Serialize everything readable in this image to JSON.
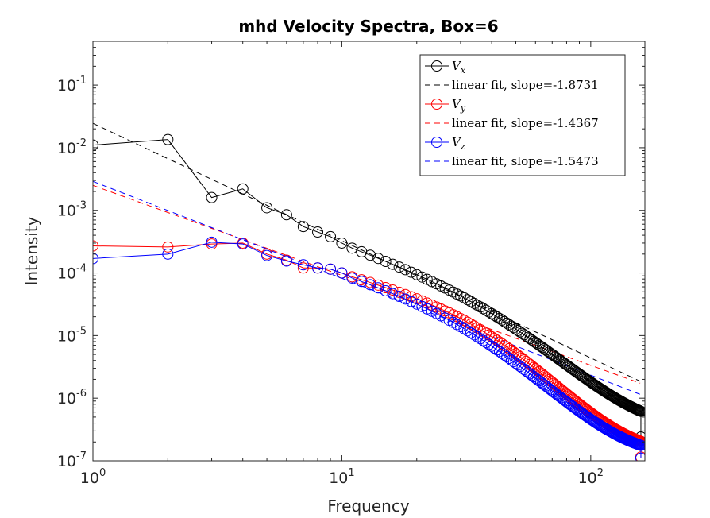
{
  "chart_data": {
    "type": "scatter",
    "title": "mhd Velocity Spectra, Box=6",
    "xlabel": "Frequency",
    "ylabel": "Intensity",
    "xscale": "log",
    "yscale": "log",
    "xlim": [
      1,
      165
    ],
    "ylim": [
      1e-07,
      0.5
    ],
    "xticks": [
      {
        "value": 1,
        "base": "10",
        "exp": "0"
      },
      {
        "value": 10,
        "base": "10",
        "exp": "1"
      },
      {
        "value": 100,
        "base": "10",
        "exp": "2"
      }
    ],
    "yticks": [
      {
        "value": 1e-07,
        "base": "10",
        "exp": "-7"
      },
      {
        "value": 1e-06,
        "base": "10",
        "exp": "-6"
      },
      {
        "value": 1e-05,
        "base": "10",
        "exp": "-5"
      },
      {
        "value": 0.0001,
        "base": "10",
        "exp": "-4"
      },
      {
        "value": 0.001,
        "base": "10",
        "exp": "-3"
      },
      {
        "value": 0.01,
        "base": "10",
        "exp": "-2"
      },
      {
        "value": 0.1,
        "base": "10",
        "exp": "-1"
      }
    ],
    "legend_position": "top-right",
    "series": [
      {
        "name": "V",
        "subscript": "x",
        "color": "#000000",
        "marker": "circle",
        "start": [
          [
            1,
            0.011
          ],
          [
            2,
            0.0135
          ],
          [
            3,
            0.0016
          ],
          [
            4,
            0.0022
          ],
          [
            5,
            0.0011
          ],
          [
            6,
            0.00085
          ],
          [
            7,
            0.00055
          ],
          [
            8,
            0.00045
          ],
          [
            9,
            0.00038
          ],
          [
            10,
            0.0003
          ]
        ],
        "shape": {
          "type": "powerlaw",
          "x0": 10,
          "y0": 0.0003,
          "slope": -1.42,
          "knee": 42,
          "slope2": -3.6,
          "floor": 3.1e-07
        },
        "last": 2.4e-07,
        "fit": {
          "label": "linear fit, slope=-1.8731",
          "intercept": 0.0245,
          "slope": -1.8731,
          "color": "#000000"
        }
      },
      {
        "name": "V",
        "subscript": "y",
        "color": "#ff0000",
        "marker": "circle",
        "start": [
          [
            1,
            0.00027
          ],
          [
            2,
            0.00026
          ],
          [
            3,
            0.00029
          ],
          [
            4,
            0.0003
          ],
          [
            5,
            0.0002
          ],
          [
            6,
            0.00016
          ],
          [
            7,
            0.00012
          ],
          [
            8,
            0.00012
          ],
          [
            9,
            0.000115
          ],
          [
            10,
            0.0001
          ]
        ],
        "shape": {
          "type": "powerlaw",
          "x0": 10,
          "y0": 0.0001,
          "slope": -1.15,
          "knee": 38,
          "slope2": -3.9,
          "floor": 1.25e-07
        },
        "last": 1.15e-07,
        "fit": {
          "label": "linear fit, slope=-1.4367",
          "intercept": 0.0025,
          "slope": -1.4367,
          "color": "#ff0000"
        }
      },
      {
        "name": "V",
        "subscript": "z",
        "color": "#0000ff",
        "marker": "circle",
        "start": [
          [
            1,
            0.00017
          ],
          [
            2,
            0.0002
          ],
          [
            3,
            0.00031
          ],
          [
            4,
            0.00029
          ],
          [
            5,
            0.00019
          ],
          [
            6,
            0.000155
          ],
          [
            7,
            0.000135
          ],
          [
            8,
            0.00012
          ],
          [
            9,
            0.000115
          ],
          [
            10,
            0.0001
          ]
        ],
        "shape": {
          "type": "powerlaw",
          "x0": 10,
          "y0": 0.0001,
          "slope": -1.3,
          "knee": 34,
          "slope2": -3.7,
          "floor": 1.1e-07
        },
        "last": 1.1e-07,
        "fit": {
          "label": "linear fit, slope=-1.5473",
          "intercept": 0.0029,
          "slope": -1.5473,
          "color": "#0000ff"
        }
      }
    ]
  }
}
